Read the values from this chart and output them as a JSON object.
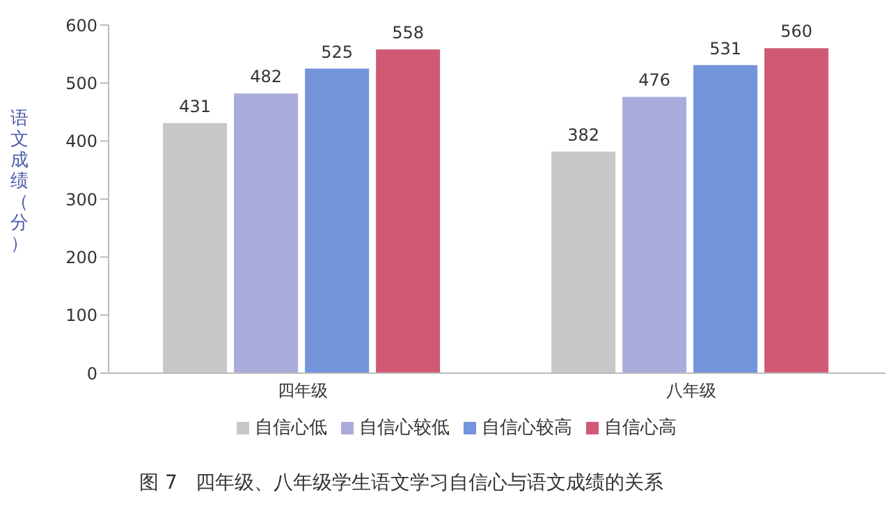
{
  "chart_data": {
    "type": "bar",
    "ylabel": "语文成绩（分）",
    "categories": [
      "四年级",
      "八年级"
    ],
    "series": [
      {
        "name": "自信心低",
        "color": "#c8c8c8",
        "values": [
          431,
          382
        ]
      },
      {
        "name": "自信心较低",
        "color": "#a9acdb",
        "values": [
          482,
          476
        ]
      },
      {
        "name": "自信心较高",
        "color": "#7494dc",
        "values": [
          525,
          531
        ]
      },
      {
        "name": "自信心高",
        "color": "#d05a73",
        "values": [
          558,
          560
        ]
      }
    ],
    "ylim": [
      0,
      600
    ],
    "yticks": [
      0,
      100,
      200,
      300,
      400,
      500,
      600
    ],
    "data_labels": true,
    "grid": false,
    "legend": "bottom",
    "annotations": [
      "图 7   四年级、八年级学生语文学习自信心与语文成绩的关系"
    ]
  }
}
